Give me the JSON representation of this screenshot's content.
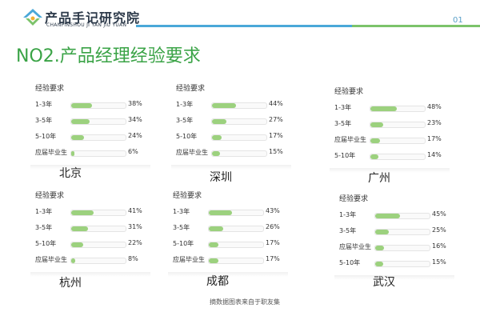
{
  "header": {
    "brand_cn": "产品手记研究院",
    "brand_en": "CHANPINSHOU JI YAN JIU YUAN",
    "page_number": "01"
  },
  "title": "NO2.产品经理经验要求",
  "footnote": "摘数据图表来自于职友集",
  "colors": {
    "accent_green": "#3aa346",
    "bar": "#9cd17e",
    "line_blue": "#4aa8d8",
    "line_green": "#7cc36a"
  },
  "chart_data": [
    {
      "type": "bar",
      "city": "北京",
      "header": "经验要求",
      "categories": [
        "1-3年",
        "3-5年",
        "5-10年",
        "应届毕业生"
      ],
      "values": [
        38,
        34,
        24,
        6
      ],
      "value_labels": [
        "38%",
        "34%",
        "24%",
        "6%"
      ]
    },
    {
      "type": "bar",
      "city": "深圳",
      "header": "经验要求",
      "categories": [
        "1-3年",
        "3-5年",
        "5-10年",
        "应届毕业生"
      ],
      "values": [
        44,
        27,
        17,
        15
      ],
      "value_labels": [
        "44%",
        "27%",
        "17%",
        "15%"
      ]
    },
    {
      "type": "bar",
      "city": "广州",
      "header": "经验要求",
      "categories": [
        "1-3年",
        "3-5年",
        "应届毕业生",
        "5-10年"
      ],
      "values": [
        48,
        23,
        17,
        14
      ],
      "value_labels": [
        "48%",
        "23%",
        "17%",
        "14%"
      ]
    },
    {
      "type": "bar",
      "city": "杭州",
      "header": "经验要求",
      "categories": [
        "1-3年",
        "3-5年",
        "5-10年",
        "应届毕业生"
      ],
      "values": [
        41,
        31,
        22,
        8
      ],
      "value_labels": [
        "41%",
        "31%",
        "22%",
        "8%"
      ]
    },
    {
      "type": "bar",
      "city": "成都",
      "header": "经验要求",
      "categories": [
        "1-3年",
        "3-5年",
        "5-10年",
        "应届毕业生"
      ],
      "values": [
        43,
        26,
        17,
        17
      ],
      "value_labels": [
        "43%",
        "26%",
        "17%",
        "17%"
      ]
    },
    {
      "type": "bar",
      "city": "武汉",
      "header": "经验要求",
      "categories": [
        "1-3年",
        "3-5年",
        "应届毕业生",
        "5-10年"
      ],
      "values": [
        45,
        25,
        16,
        15
      ],
      "value_labels": [
        "45%",
        "25%",
        "16%",
        "15%"
      ]
    }
  ]
}
